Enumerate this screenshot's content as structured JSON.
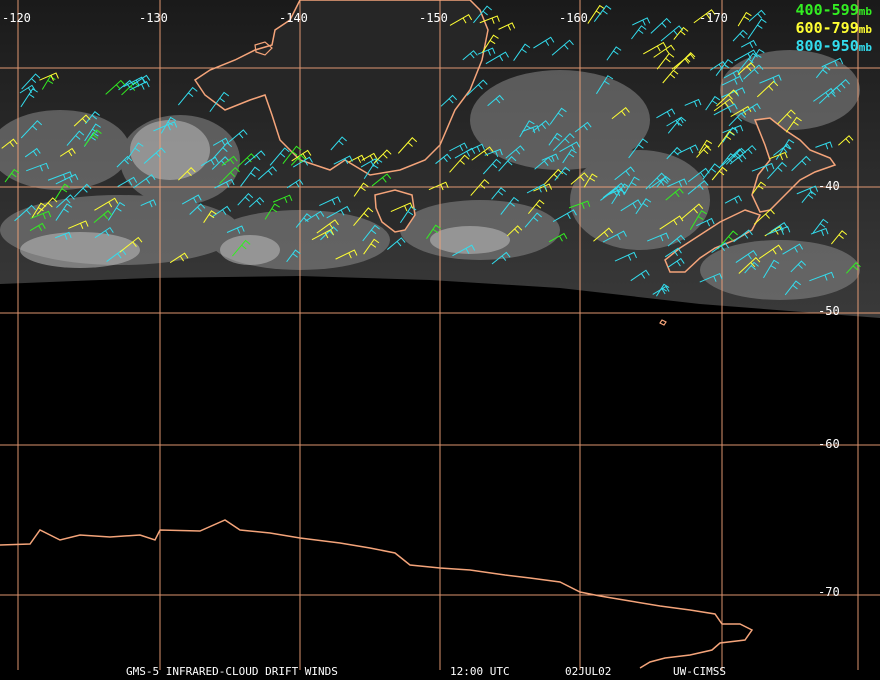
{
  "grid": {
    "longitudes": [
      "-120",
      "-130",
      "-140",
      "-150",
      "-160",
      "-170"
    ],
    "latitudes": [
      "-40",
      "-50",
      "-60",
      "-70"
    ],
    "color": "#f4a47a"
  },
  "legend": [
    {
      "range": "400-599",
      "unit": "mb",
      "color": "#33ee22"
    },
    {
      "range": "600-799",
      "unit": "mb",
      "color": "#ffff33"
    },
    {
      "range": "800-950",
      "unit": "mb",
      "color": "#33ddee"
    }
  ],
  "footer": {
    "product": "GMS-5 INFRARED-CLOUD DRIFT WINDS",
    "time": "12:00 UTC",
    "date": "02JUL02",
    "source": "UW-CIMSS"
  },
  "colors": {
    "background": "#000000",
    "coastline": "#f4a47a",
    "cloud": "#7a7a7a"
  }
}
